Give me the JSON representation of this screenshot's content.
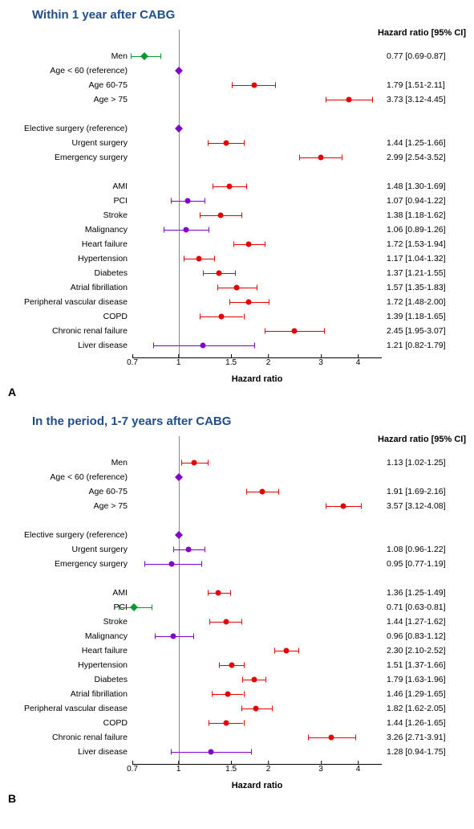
{
  "colors": {
    "green": "#009933",
    "red": "#e60000",
    "purple": "#8000cc",
    "title": "#1f4e8c",
    "ref_line": "#888888"
  },
  "xaxis": {
    "ticks": [
      0.7,
      1,
      1.5,
      2,
      3,
      4
    ],
    "min_log": -0.357,
    "max_log": 1.569,
    "title": "Hazard ratio"
  },
  "header": "Hazard ratio [95% CI]",
  "panels": [
    {
      "letter": "A",
      "title": "Within 1 year after CABG",
      "rows": [
        {
          "label": "Men",
          "hr": 0.77,
          "lo": 0.69,
          "hi": 0.87,
          "color": "green",
          "shape": "square",
          "text": "0.77  [0.69-0.87]"
        },
        {
          "label": "Age < 60 (reference)",
          "hr": 1,
          "ref": true,
          "color": "purple",
          "shape": "square",
          "text": ""
        },
        {
          "label": "Age 60-75",
          "hr": 1.79,
          "lo": 1.51,
          "hi": 2.11,
          "color": "red",
          "shape": "dot",
          "text": "1.79  [1.51-2.11]"
        },
        {
          "label": "Age > 75",
          "hr": 3.73,
          "lo": 3.12,
          "hi": 4.45,
          "color": "red",
          "shape": "dot",
          "text": "3.73  [3.12-4.45]"
        },
        {
          "label": ".",
          "blank": true
        },
        {
          "label": "Elective surgery (reference)",
          "hr": 1,
          "ref": true,
          "color": "purple",
          "shape": "square",
          "text": ""
        },
        {
          "label": "Urgent surgery",
          "hr": 1.44,
          "lo": 1.25,
          "hi": 1.66,
          "color": "red",
          "shape": "dot",
          "text": "1.44  [1.25-1.66]"
        },
        {
          "label": "Emergency surgery",
          "hr": 2.99,
          "lo": 2.54,
          "hi": 3.52,
          "color": "red",
          "shape": "dot",
          "text": "2.99  [2.54-3.52]"
        },
        {
          "label": ".",
          "blank": true
        },
        {
          "label": "AMI",
          "hr": 1.48,
          "lo": 1.3,
          "hi": 1.69,
          "color": "red",
          "shape": "dot",
          "text": "1.48  [1.30-1.69]"
        },
        {
          "label": "PCI",
          "hr": 1.07,
          "lo": 0.94,
          "hi": 1.22,
          "color": "purple",
          "shape": "dot",
          "text": "1.07  [0.94-1.22]"
        },
        {
          "label": "Stroke",
          "hr": 1.38,
          "lo": 1.18,
          "hi": 1.62,
          "color": "red",
          "shape": "dot",
          "text": "1.38  [1.18-1.62]"
        },
        {
          "label": "Malignancy",
          "hr": 1.06,
          "lo": 0.89,
          "hi": 1.26,
          "color": "purple",
          "shape": "dot",
          "text": "1.06  [0.89-1.26]"
        },
        {
          "label": "Heart failure",
          "hr": 1.72,
          "lo": 1.53,
          "hi": 1.94,
          "color": "red",
          "shape": "dot",
          "text": "1.72  [1.53-1.94]"
        },
        {
          "label": "Hypertension",
          "hr": 1.17,
          "lo": 1.04,
          "hi": 1.32,
          "color": "red",
          "shape": "dot",
          "text": "1.17  [1.04-1.32]"
        },
        {
          "label": "Diabetes",
          "hr": 1.37,
          "lo": 1.21,
          "hi": 1.55,
          "color": "red",
          "shape": "dot",
          "text": "1.37  [1.21-1.55]"
        },
        {
          "label": "Atrial fibrillation",
          "hr": 1.57,
          "lo": 1.35,
          "hi": 1.83,
          "color": "red",
          "shape": "dot",
          "text": "1.57  [1.35-1.83]"
        },
        {
          "label": "Peripheral vascular disease",
          "hr": 1.72,
          "lo": 1.48,
          "hi": 2.0,
          "color": "red",
          "shape": "dot",
          "text": "1.72  [1.48-2.00]"
        },
        {
          "label": "COPD",
          "hr": 1.39,
          "lo": 1.18,
          "hi": 1.65,
          "color": "red",
          "shape": "dot",
          "text": "1.39  [1.18-1.65]"
        },
        {
          "label": "Chronic renal failure",
          "hr": 2.45,
          "lo": 1.95,
          "hi": 3.07,
          "color": "red",
          "shape": "dot",
          "text": "2.45  [1.95-3.07]"
        },
        {
          "label": "Liver disease",
          "hr": 1.21,
          "lo": 0.82,
          "hi": 1.79,
          "color": "purple",
          "shape": "dot",
          "text": "1.21  [0.82-1.79]"
        }
      ]
    },
    {
      "letter": "B",
      "title": "In the period, 1-7 years after CABG",
      "rows": [
        {
          "label": "Men",
          "hr": 1.13,
          "lo": 1.02,
          "hi": 1.25,
          "color": "red",
          "shape": "dot",
          "text": "1.13  [1.02-1.25]"
        },
        {
          "label": "Age < 60 (reference)",
          "hr": 1,
          "ref": true,
          "color": "purple",
          "shape": "square",
          "text": ""
        },
        {
          "label": "Age 60-75",
          "hr": 1.91,
          "lo": 1.69,
          "hi": 2.16,
          "color": "red",
          "shape": "dot",
          "text": "1.91  [1.69-2.16]"
        },
        {
          "label": "Age > 75",
          "hr": 3.57,
          "lo": 3.12,
          "hi": 4.08,
          "color": "red",
          "shape": "dot",
          "text": "3.57  [3.12-4.08]"
        },
        {
          "label": ".",
          "blank": true
        },
        {
          "label": "Elective surgery (reference)",
          "hr": 1,
          "ref": true,
          "color": "purple",
          "shape": "square",
          "text": ""
        },
        {
          "label": "Urgent surgery",
          "hr": 1.08,
          "lo": 0.96,
          "hi": 1.22,
          "color": "purple",
          "shape": "dot",
          "text": "1.08  [0.96-1.22]"
        },
        {
          "label": "Emergency surgery",
          "hr": 0.95,
          "lo": 0.77,
          "hi": 1.19,
          "color": "purple",
          "shape": "dot",
          "text": "0.95  [0.77-1.19]"
        },
        {
          "label": "..",
          "blank": true
        },
        {
          "label": "AMI",
          "hr": 1.36,
          "lo": 1.25,
          "hi": 1.49,
          "color": "red",
          "shape": "dot",
          "text": "1.36  [1.25-1.49]"
        },
        {
          "label": "PCI",
          "hr": 0.71,
          "lo": 0.63,
          "hi": 0.81,
          "color": "green",
          "shape": "square",
          "text": "0.71  [0.63-0.81]"
        },
        {
          "label": "Stroke",
          "hr": 1.44,
          "lo": 1.27,
          "hi": 1.62,
          "color": "red",
          "shape": "dot",
          "text": "1.44  [1.27-1.62]"
        },
        {
          "label": "Malignancy",
          "hr": 0.96,
          "lo": 0.83,
          "hi": 1.12,
          "color": "purple",
          "shape": "dot",
          "text": "0.96  [0.83-1.12]"
        },
        {
          "label": "Heart failure",
          "hr": 2.3,
          "lo": 2.1,
          "hi": 2.52,
          "color": "red",
          "shape": "dot",
          "text": "2.30  [2.10-2.52]"
        },
        {
          "label": "Hypertension",
          "hr": 1.51,
          "lo": 1.37,
          "hi": 1.66,
          "color": "red",
          "shape": "dot",
          "text": "1.51  [1.37-1.66]"
        },
        {
          "label": "Diabetes",
          "hr": 1.79,
          "lo": 1.63,
          "hi": 1.96,
          "color": "red",
          "shape": "dot",
          "text": "1.79  [1.63-1.96]"
        },
        {
          "label": "Atrial fibrillation",
          "hr": 1.46,
          "lo": 1.29,
          "hi": 1.65,
          "color": "red",
          "shape": "dot",
          "text": "1.46  [1.29-1.65]"
        },
        {
          "label": "Peripheral vascular disease",
          "hr": 1.82,
          "lo": 1.62,
          "hi": 2.05,
          "color": "red",
          "shape": "dot",
          "text": "1.82  [1.62-2.05]"
        },
        {
          "label": "COPD",
          "hr": 1.44,
          "lo": 1.26,
          "hi": 1.65,
          "color": "red",
          "shape": "dot",
          "text": "1.44  [1.26-1.65]"
        },
        {
          "label": "Chronic renal failure",
          "hr": 3.26,
          "lo": 2.71,
          "hi": 3.91,
          "color": "red",
          "shape": "dot",
          "text": "3.26  [2.71-3.91]"
        },
        {
          "label": "Liver disease",
          "hr": 1.28,
          "lo": 0.94,
          "hi": 1.75,
          "color": "purple",
          "shape": "dot",
          "text": "1.28  [0.94-1.75]"
        }
      ]
    }
  ]
}
